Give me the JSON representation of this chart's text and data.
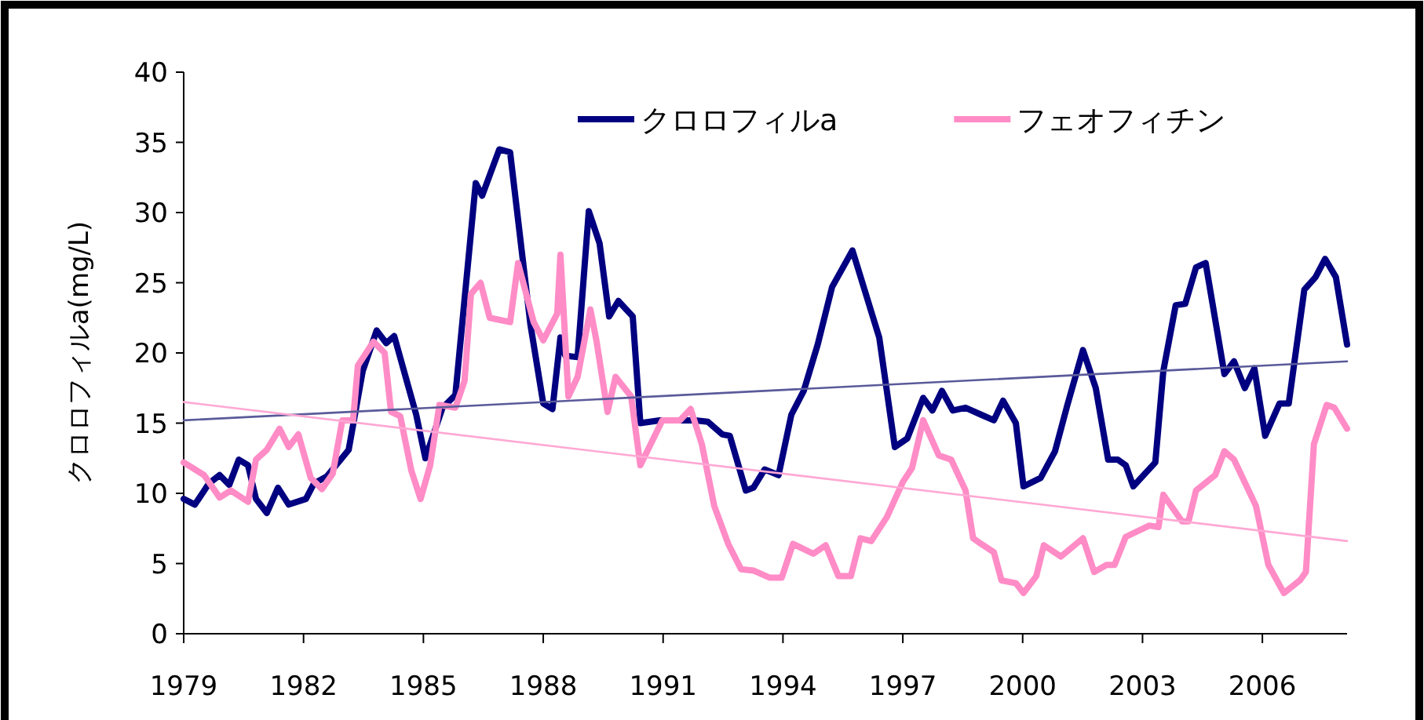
{
  "chart_data": {
    "type": "line",
    "ylabel": "クロロフィルa(mg/L)",
    "xlim": [
      1979,
      2008.12
    ],
    "xticks": [
      1979,
      1982,
      1985,
      1988,
      1991,
      1994,
      1997,
      2000,
      2003,
      2006
    ],
    "ylim": [
      0,
      40
    ],
    "yticks": [
      0,
      5,
      10,
      15,
      20,
      25,
      30,
      35,
      40
    ],
    "grid": false,
    "legend": "top",
    "marker": "none",
    "line_style": "solid",
    "series": [
      {
        "name": "クロロフィルa",
        "color": "#000080",
        "x": [
          1979.0,
          1979.28,
          1979.63,
          1979.9,
          1980.14,
          1980.38,
          1980.61,
          1980.81,
          1981.08,
          1981.36,
          1981.63,
          1982.06,
          1982.26,
          1982.58,
          1982.93,
          1983.13,
          1983.48,
          1983.83,
          1984.07,
          1984.27,
          1984.82,
          1985.05,
          1985.48,
          1985.8,
          1986.31,
          1986.47,
          1986.9,
          1987.17,
          1987.68,
          1988.0,
          1988.23,
          1988.43,
          1988.55,
          1988.86,
          1989.14,
          1989.41,
          1989.65,
          1989.88,
          1990.24,
          1990.43,
          1990.91,
          1991.81,
          1992.12,
          1992.48,
          1992.67,
          1993.07,
          1993.26,
          1993.54,
          1993.89,
          1994.21,
          1994.52,
          1994.87,
          1995.23,
          1995.74,
          1996.41,
          1996.8,
          1997.11,
          1997.51,
          1997.74,
          1997.98,
          1998.25,
          1998.57,
          1998.96,
          1999.28,
          1999.51,
          1999.83,
          2000.02,
          2000.45,
          2000.81,
          2001.12,
          2001.51,
          2001.83,
          2002.14,
          2002.38,
          2002.58,
          2002.77,
          2003.32,
          2003.52,
          2003.83,
          2004.07,
          2004.34,
          2004.58,
          2005.05,
          2005.29,
          2005.56,
          2005.8,
          2006.07,
          2006.43,
          2006.66,
          2007.05,
          2007.33,
          2007.57,
          2007.84,
          2008.12
        ],
        "values": [
          9.6,
          9.2,
          10.7,
          11.3,
          10.6,
          12.4,
          12.0,
          9.6,
          8.6,
          10.4,
          9.2,
          9.6,
          10.7,
          11.2,
          12.4,
          13.1,
          18.7,
          21.6,
          20.7,
          21.2,
          15.6,
          12.5,
          16.1,
          17.0,
          32.1,
          31.2,
          34.5,
          34.3,
          22.0,
          16.4,
          16.0,
          21.1,
          19.8,
          19.7,
          30.1,
          27.8,
          22.6,
          23.7,
          22.6,
          15.0,
          15.2,
          15.2,
          15.1,
          14.2,
          14.1,
          10.2,
          10.4,
          11.7,
          11.3,
          15.6,
          17.3,
          20.6,
          24.7,
          27.3,
          21.1,
          13.3,
          13.9,
          16.8,
          15.9,
          17.3,
          15.9,
          16.1,
          15.6,
          15.2,
          16.6,
          15.0,
          10.5,
          11.1,
          13.0,
          16.3,
          20.2,
          17.5,
          12.4,
          12.4,
          12.0,
          10.5,
          12.2,
          18.7,
          23.4,
          23.5,
          26.1,
          26.4,
          18.5,
          19.4,
          17.5,
          18.9,
          14.1,
          16.4,
          16.4,
          24.5,
          25.4,
          26.7,
          25.4,
          20.6
        ]
      },
      {
        "name": "フェオフィチン",
        "color": "#ff8cc6",
        "x": [
          1979.0,
          1979.51,
          1979.9,
          1980.18,
          1980.61,
          1980.81,
          1981.08,
          1981.4,
          1981.63,
          1981.87,
          1982.18,
          1982.46,
          1982.73,
          1982.97,
          1983.24,
          1983.36,
          1983.75,
          1984.03,
          1984.19,
          1984.42,
          1984.7,
          1984.93,
          1985.17,
          1985.4,
          1985.8,
          1986.03,
          1986.19,
          1986.43,
          1986.66,
          1987.17,
          1987.37,
          1987.76,
          1988.0,
          1988.35,
          1988.43,
          1988.63,
          1988.86,
          1989.18,
          1989.33,
          1989.61,
          1989.81,
          1990.2,
          1990.43,
          1990.98,
          1991.42,
          1991.69,
          1991.97,
          1992.28,
          1992.63,
          1992.95,
          1993.26,
          1993.66,
          1993.97,
          1994.25,
          1994.76,
          1995.07,
          1995.39,
          1995.7,
          1995.94,
          1996.21,
          1996.6,
          1997.0,
          1997.23,
          1997.51,
          1997.9,
          1998.21,
          1998.57,
          1998.76,
          1998.96,
          1999.28,
          1999.47,
          1999.83,
          2000.02,
          2000.34,
          2000.53,
          2000.96,
          2001.51,
          2001.79,
          2002.1,
          2002.3,
          2002.58,
          2003.17,
          2003.4,
          2003.52,
          2003.99,
          2004.15,
          2004.34,
          2004.82,
          2005.05,
          2005.29,
          2005.84,
          2006.15,
          2006.54,
          2006.94,
          2007.09,
          2007.29,
          2007.61,
          2007.8,
          2008.12
        ],
        "values": [
          12.2,
          11.3,
          9.7,
          10.2,
          9.4,
          12.4,
          13.1,
          14.6,
          13.3,
          14.2,
          11.1,
          10.3,
          11.4,
          15.2,
          15.2,
          19.1,
          20.8,
          20.0,
          15.8,
          15.5,
          11.6,
          9.6,
          12.0,
          16.3,
          16.1,
          18.0,
          24.2,
          25.0,
          22.5,
          22.2,
          26.4,
          22.2,
          20.9,
          22.8,
          27.0,
          16.9,
          18.3,
          23.1,
          20.9,
          15.8,
          18.3,
          16.9,
          12.0,
          15.2,
          15.2,
          16.0,
          13.5,
          9.1,
          6.4,
          4.6,
          4.5,
          4.0,
          4.0,
          6.4,
          5.7,
          6.3,
          4.1,
          4.1,
          6.8,
          6.6,
          8.3,
          10.8,
          11.8,
          15.2,
          12.7,
          12.4,
          10.2,
          6.8,
          6.4,
          5.8,
          3.8,
          3.6,
          2.9,
          4.1,
          6.3,
          5.5,
          6.8,
          4.4,
          4.9,
          4.9,
          6.9,
          7.7,
          7.6,
          9.9,
          8.0,
          8.0,
          10.2,
          11.3,
          13.0,
          12.4,
          9.1,
          4.9,
          2.9,
          3.8,
          4.4,
          13.5,
          16.3,
          16.1,
          14.6
        ]
      },
      {
        "type": "line",
        "color": "#5a5a9a",
        "x": [
          1979,
          2008.12
        ],
        "values": [
          15.2,
          19.4
        ]
      },
      {
        "type": "line",
        "color": "#ffa8d4",
        "x": [
          1979,
          2008.12
        ],
        "values": [
          16.5,
          6.6
        ]
      }
    ]
  }
}
